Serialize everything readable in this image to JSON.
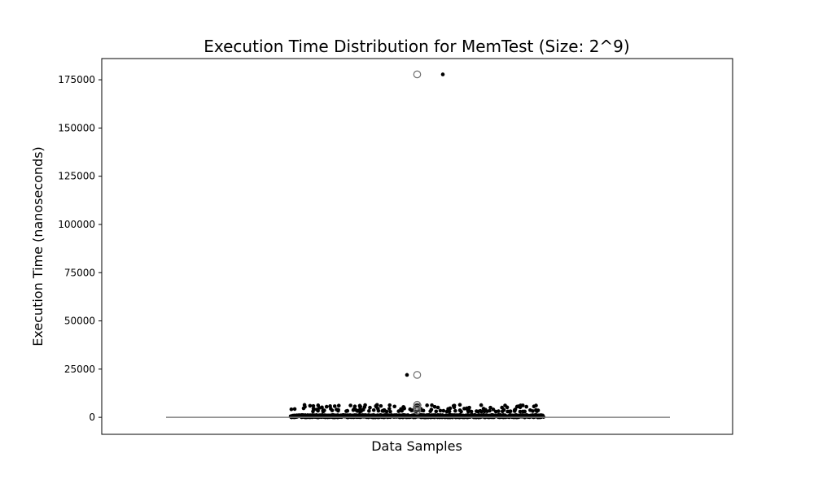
{
  "chart_data": {
    "type": "scatter",
    "title": "Execution Time Distribution for MemTest (Size: 2^9)",
    "xlabel": "Data Samples",
    "ylabel": "Execution Time (nanoseconds)",
    "ylim": [
      -8800,
      186000
    ],
    "yticks": [
      0,
      25000,
      50000,
      75000,
      100000,
      125000,
      150000,
      175000
    ],
    "grid": false,
    "legend": "none",
    "colors": {
      "points": "#000000",
      "box": "#808080",
      "outlier_edge": "#6e6e6e",
      "background": "#ffffff"
    },
    "box_summary": {
      "whisker_low": 0,
      "q1": 0,
      "median": 0,
      "q3": 0,
      "whisker_high": 0,
      "outliers": [
        177800,
        22000,
        6500,
        5500,
        4500,
        3500
      ]
    },
    "strip_points": {
      "baseline_band": {
        "min": 0,
        "max": 1200,
        "approx_count": 2000
      },
      "upper_band": {
        "min": 3000,
        "max": 6500,
        "approx_count": 150
      },
      "extreme_points": [
        177800,
        22000,
        6500
      ]
    }
  }
}
